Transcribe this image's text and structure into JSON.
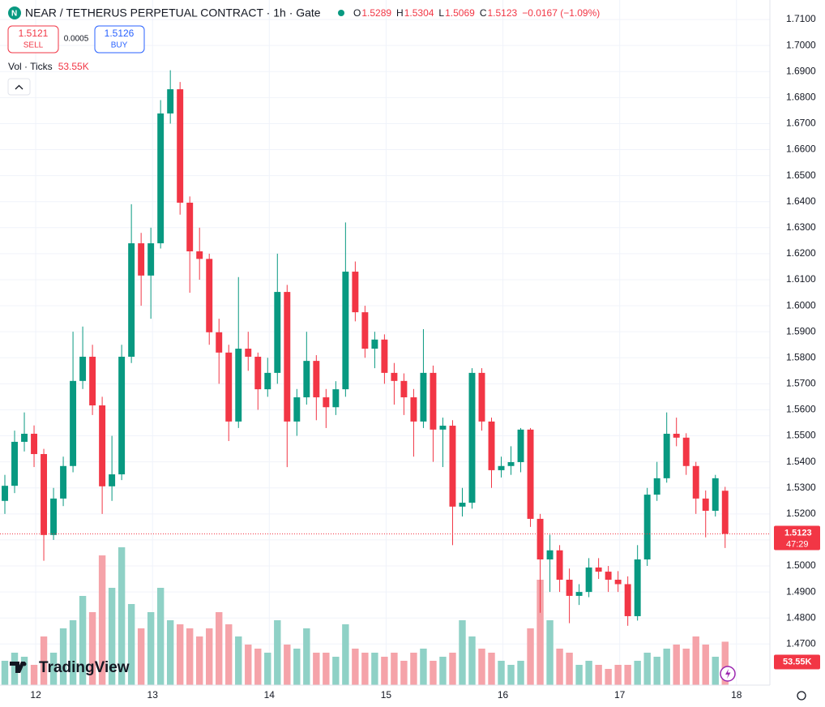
{
  "header": {
    "symbol": "NEAR / TETHERUS PERPETUAL CONTRACT · 1h · Gate",
    "o_label": "O",
    "o": "1.5289",
    "h_label": "H",
    "h": "1.5304",
    "l_label": "L",
    "l": "1.5069",
    "c_label": "C",
    "c": "1.5123",
    "change": "−0.0167 (−1.09%)"
  },
  "trade": {
    "sell_price": "1.5121",
    "sell": "SELL",
    "spread": "0.0005",
    "buy_price": "1.5126",
    "buy": "BUY"
  },
  "volume_legend": {
    "name": "Vol · Ticks",
    "value": "53.55K"
  },
  "price_tag": {
    "countdown": "47:29"
  },
  "brand": "TradingView",
  "chart_data": {
    "type": "candlestick",
    "up_color": "#089981",
    "down_color": "#f23645",
    "volume_up_color": "#8fd1c6",
    "volume_down_color": "#f5a3a9",
    "open": [
      1.525,
      1.5308,
      1.5477,
      1.5508,
      1.543,
      1.5119,
      1.5259,
      1.5384,
      1.5711,
      1.5804,
      1.5617,
      1.5306,
      1.5352,
      1.5804,
      1.624,
      1.6116,
      1.624,
      1.6739,
      1.6832,
      1.6396,
      1.6209,
      1.618,
      1.5898,
      1.582,
      1.5555,
      1.5835,
      1.5804,
      1.5679,
      1.5742,
      1.6053,
      1.5555,
      1.5648,
      1.5788,
      1.5648,
      1.561,
      1.5679,
      1.6131,
      1.5975,
      1.5835,
      1.587,
      1.5742,
      1.5711,
      1.5648,
      1.5555,
      1.5742,
      1.5524,
      1.5539,
      1.5228,
      1.5243,
      1.5742,
      1.5555,
      1.5368,
      1.5384,
      1.5399,
      1.5524,
      1.5181,
      1.5025,
      1.506,
      1.4947,
      1.4885,
      1.49,
      1.4994,
      1.4978,
      1.4947,
      1.493,
      1.4807,
      1.5025,
      1.5274,
      1.5337,
      1.5508,
      1.5493,
      1.5384,
      1.5259,
      1.5212,
      1.5289
    ],
    "high": [
      1.535,
      1.552,
      1.559,
      1.554,
      1.545,
      1.53,
      1.542,
      1.59,
      1.592,
      1.585,
      1.565,
      1.55,
      1.585,
      1.639,
      1.628,
      1.63,
      1.679,
      1.6905,
      1.686,
      1.642,
      1.63,
      1.62,
      1.595,
      1.585,
      1.611,
      1.59,
      1.582,
      1.58,
      1.62,
      1.608,
      1.568,
      1.59,
      1.581,
      1.568,
      1.571,
      1.632,
      1.617,
      1.6,
      1.59,
      1.589,
      1.578,
      1.574,
      1.568,
      1.591,
      1.577,
      1.557,
      1.556,
      1.53,
      1.576,
      1.576,
      1.557,
      1.542,
      1.546,
      1.553,
      1.553,
      1.52,
      1.512,
      1.508,
      1.499,
      1.493,
      1.503,
      1.503,
      1.5,
      1.498,
      1.496,
      1.508,
      1.53,
      1.54,
      1.559,
      1.557,
      1.551,
      1.54,
      1.529,
      1.535,
      1.5304
    ],
    "low": [
      1.52,
      1.528,
      1.544,
      1.538,
      1.502,
      1.51,
      1.523,
      1.536,
      1.568,
      1.558,
      1.52,
      1.525,
      1.533,
      1.578,
      1.6,
      1.595,
      1.622,
      1.67,
      1.635,
      1.605,
      1.61,
      1.585,
      1.57,
      1.548,
      1.553,
      1.575,
      1.56,
      1.565,
      1.57,
      1.538,
      1.55,
      1.562,
      1.556,
      1.553,
      1.558,
      1.565,
      1.594,
      1.58,
      1.576,
      1.57,
      1.562,
      1.558,
      1.542,
      1.553,
      1.54,
      1.538,
      1.508,
      1.519,
      1.522,
      1.552,
      1.53,
      1.534,
      1.535,
      1.536,
      1.515,
      1.482,
      1.49,
      1.49,
      1.478,
      1.485,
      1.488,
      1.495,
      1.49,
      1.49,
      1.477,
      1.479,
      1.5,
      1.525,
      1.532,
      1.546,
      1.535,
      1.52,
      1.511,
      1.519,
      1.5069
    ],
    "close": [
      1.5308,
      1.5477,
      1.5508,
      1.543,
      1.5119,
      1.5259,
      1.5384,
      1.5711,
      1.5804,
      1.5617,
      1.5306,
      1.5352,
      1.5804,
      1.624,
      1.6116,
      1.624,
      1.6739,
      1.6832,
      1.6396,
      1.6209,
      1.618,
      1.5898,
      1.582,
      1.5555,
      1.5835,
      1.5804,
      1.5679,
      1.5742,
      1.6053,
      1.5555,
      1.5648,
      1.5788,
      1.5648,
      1.561,
      1.5679,
      1.6131,
      1.5975,
      1.5835,
      1.587,
      1.5742,
      1.5711,
      1.5648,
      1.5555,
      1.5742,
      1.5524,
      1.5539,
      1.5228,
      1.5243,
      1.5742,
      1.5555,
      1.5368,
      1.5384,
      1.5399,
      1.5524,
      1.5181,
      1.5025,
      1.506,
      1.4947,
      1.4885,
      1.49,
      1.4994,
      1.4978,
      1.4947,
      1.493,
      1.4807,
      1.5025,
      1.5274,
      1.5337,
      1.5508,
      1.5493,
      1.5384,
      1.5259,
      1.5212,
      1.5337,
      1.5123
    ],
    "volume": [
      30,
      40,
      35,
      25,
      60,
      40,
      70,
      80,
      110,
      90,
      160,
      120,
      170,
      100,
      70,
      90,
      120,
      80,
      75,
      70,
      60,
      70,
      90,
      75,
      60,
      50,
      45,
      40,
      80,
      50,
      45,
      70,
      40,
      40,
      35,
      75,
      45,
      40,
      40,
      35,
      40,
      30,
      40,
      45,
      30,
      35,
      40,
      80,
      60,
      45,
      40,
      30,
      25,
      30,
      70,
      130,
      80,
      45,
      40,
      25,
      30,
      25,
      20,
      25,
      25,
      30,
      40,
      35,
      45,
      50,
      45,
      60,
      50,
      35,
      53.55
    ],
    "xlim": [
      -0.5,
      78.6
    ],
    "xticks": [
      {
        "value": 3.17,
        "label": "12"
      },
      {
        "value": 15.17,
        "label": "13"
      },
      {
        "value": 27.17,
        "label": "14"
      },
      {
        "value": 39.17,
        "label": "15"
      },
      {
        "value": 51.17,
        "label": "16"
      },
      {
        "value": 63.17,
        "label": "17"
      },
      {
        "value": 75.17,
        "label": "18"
      }
    ],
    "ylim": [
      1.4542,
      1.7175
    ],
    "yticks": [
      {
        "value": 1.71,
        "label": "1.7100"
      },
      {
        "value": 1.7,
        "label": "1.7000"
      },
      {
        "value": 1.69,
        "label": "1.6900"
      },
      {
        "value": 1.68,
        "label": "1.6800"
      },
      {
        "value": 1.67,
        "label": "1.6700"
      },
      {
        "value": 1.66,
        "label": "1.6600"
      },
      {
        "value": 1.65,
        "label": "1.6500"
      },
      {
        "value": 1.64,
        "label": "1.6400"
      },
      {
        "value": 1.63,
        "label": "1.6300"
      },
      {
        "value": 1.62,
        "label": "1.6200"
      },
      {
        "value": 1.61,
        "label": "1.6100"
      },
      {
        "value": 1.6,
        "label": "1.6000"
      },
      {
        "value": 1.59,
        "label": "1.5900"
      },
      {
        "value": 1.58,
        "label": "1.5800"
      },
      {
        "value": 1.57,
        "label": "1.5700"
      },
      {
        "value": 1.56,
        "label": "1.5600"
      },
      {
        "value": 1.55,
        "label": "1.5500"
      },
      {
        "value": 1.54,
        "label": "1.5400"
      },
      {
        "value": 1.53,
        "label": "1.5300"
      },
      {
        "value": 1.52,
        "label": "1.5200"
      },
      {
        "value": 1.51,
        "label": "1.5100"
      },
      {
        "value": 1.5,
        "label": "1.5000"
      },
      {
        "value": 1.49,
        "label": "1.4900"
      },
      {
        "value": 1.48,
        "label": "1.4800"
      },
      {
        "value": 1.47,
        "label": "1.4700"
      }
    ],
    "grid": true
  }
}
